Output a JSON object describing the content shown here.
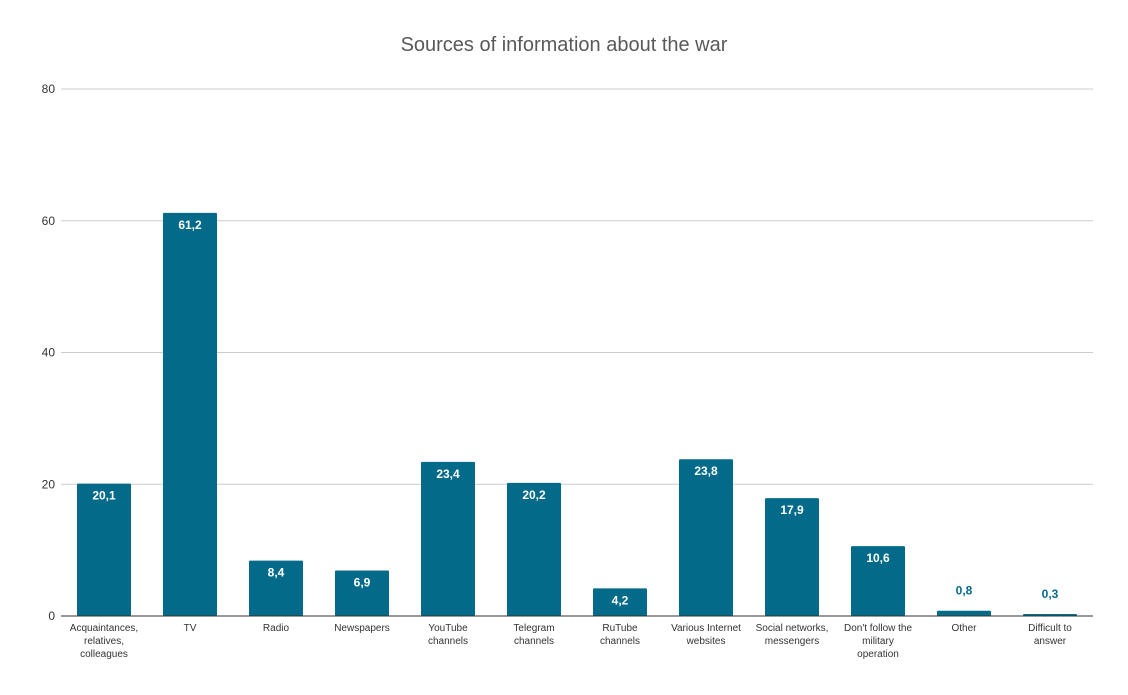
{
  "chart_data": {
    "type": "bar",
    "title": "Sources of information about the war",
    "xlabel": "",
    "ylabel": "",
    "ylim": [
      0,
      80
    ],
    "yticks": [
      "0",
      "20",
      "40",
      "60",
      "80"
    ],
    "grid": true,
    "legend": "none",
    "bar_color": "#046a8a",
    "categories": [
      [
        "Acquaintances,",
        "relatives,",
        "colleagues"
      ],
      [
        "TV"
      ],
      [
        "Radio"
      ],
      [
        "Newspapers"
      ],
      [
        "YouTube",
        "channels"
      ],
      [
        "Telegram",
        "channels"
      ],
      [
        "RuTube",
        "channels"
      ],
      [
        "Various Internet",
        "websites"
      ],
      [
        "Social networks,",
        "messengers"
      ],
      [
        "Don't follow the",
        "military",
        "operation"
      ],
      [
        "Other"
      ],
      [
        "Difficult to",
        "answer"
      ]
    ],
    "values": [
      20.1,
      61.2,
      8.4,
      6.9,
      23.4,
      20.2,
      4.2,
      23.8,
      17.9,
      10.6,
      0.8,
      0.3
    ],
    "value_labels": [
      "20,1",
      "61,2",
      "8,4",
      "6,9",
      "23,4",
      "20,2",
      "4,2",
      "23,8",
      "17,9",
      "10,6",
      "0,8",
      "0,3"
    ]
  }
}
